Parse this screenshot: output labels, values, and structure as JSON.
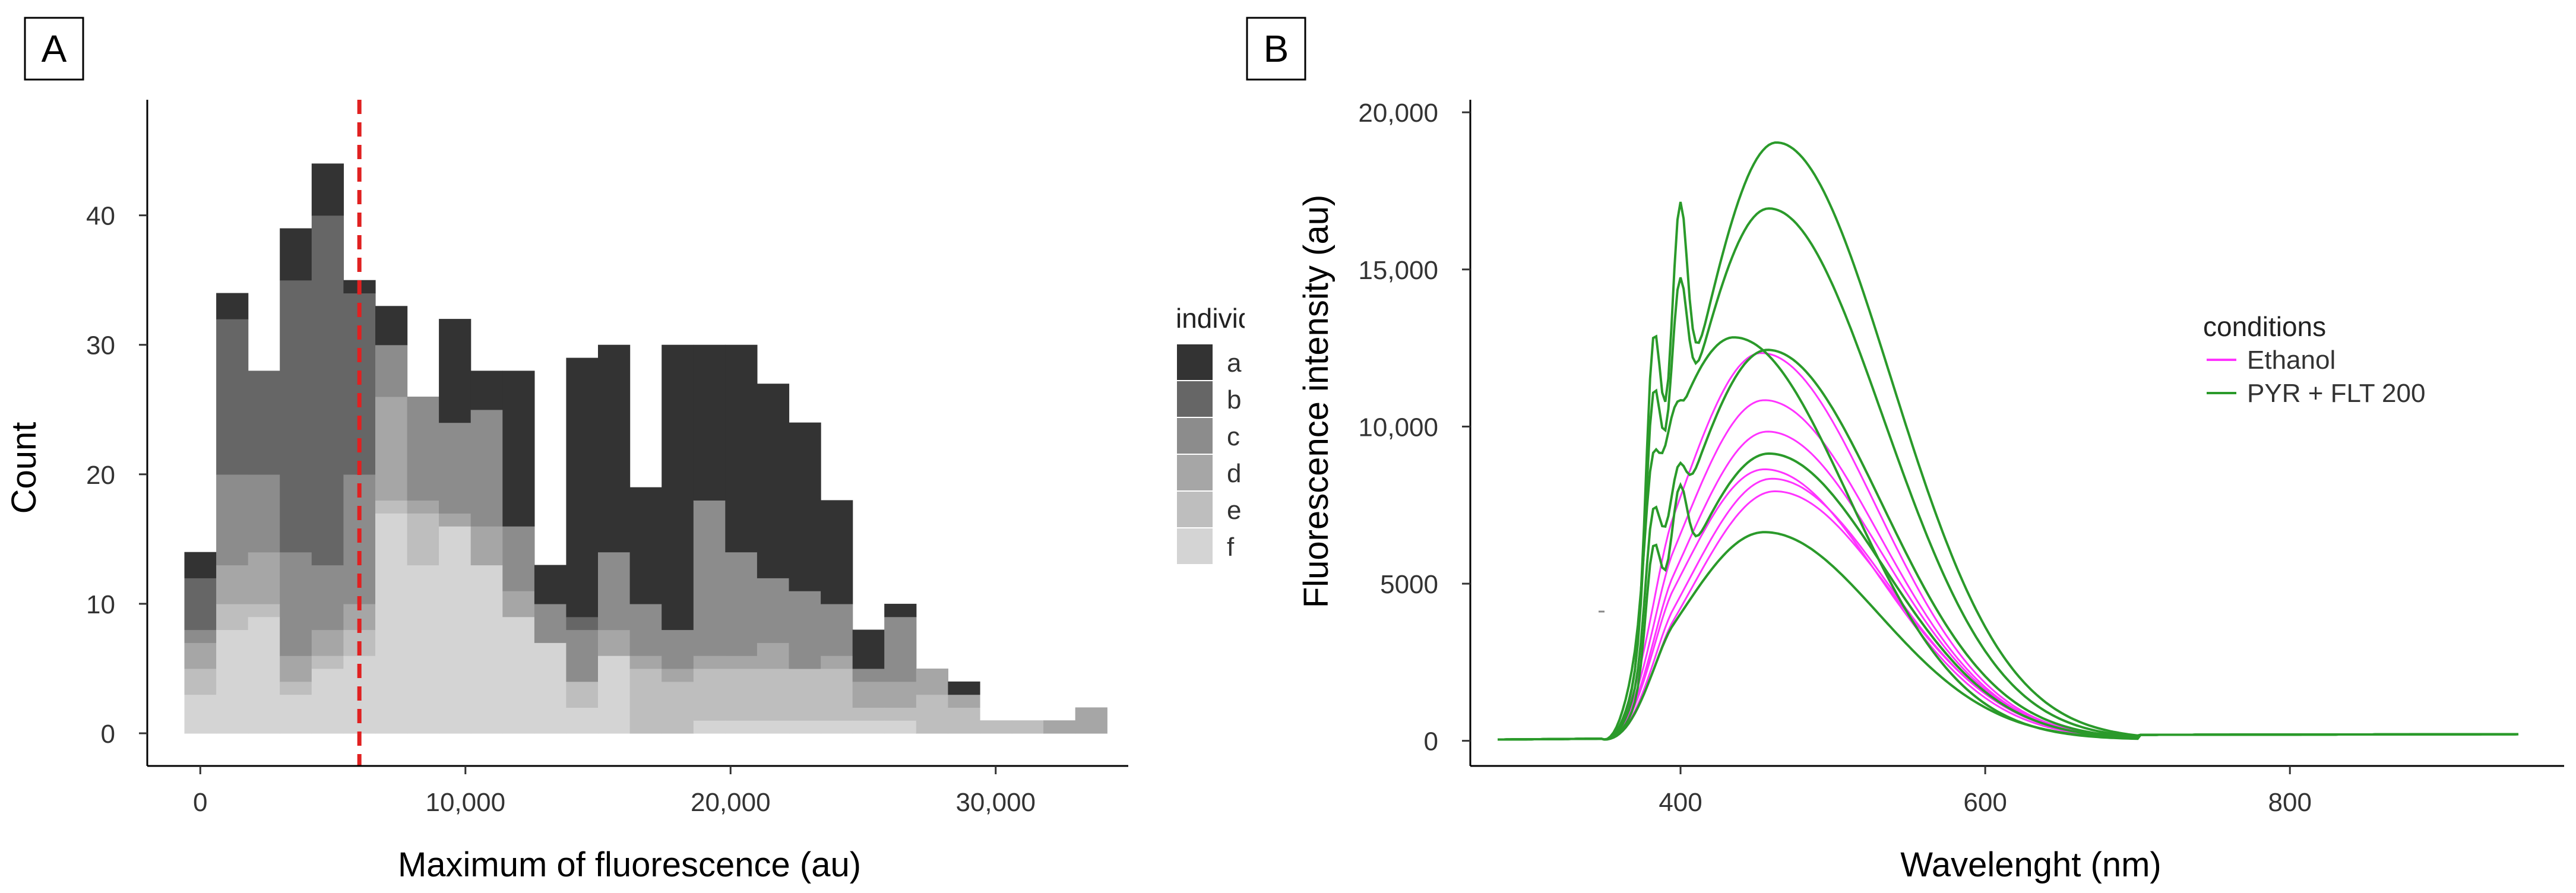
{
  "chart_data": [
    {
      "panel": "A",
      "type": "bar",
      "subtype": "stacked-histogram",
      "title": "",
      "xlabel": "Maximum of fluorescence (au)",
      "ylabel": "Count",
      "xlim": [
        -2000,
        35000
      ],
      "ylim": [
        0,
        47
      ],
      "x_ticks": [
        {
          "value": 0,
          "label": "0"
        },
        {
          "value": 10000,
          "label": "10,000"
        },
        {
          "value": 20000,
          "label": "20,000"
        },
        {
          "value": 30000,
          "label": "30,000"
        }
      ],
      "y_ticks": [
        {
          "value": 0,
          "label": "0"
        },
        {
          "value": 10,
          "label": "10"
        },
        {
          "value": 20,
          "label": "20"
        },
        {
          "value": 30,
          "label": "30"
        },
        {
          "value": 40,
          "label": "40"
        }
      ],
      "bin_starts": [
        -600,
        600,
        1800,
        3000,
        4200,
        5400,
        6600,
        7800,
        9000,
        10200,
        11400,
        12600,
        13800,
        15000,
        16200,
        17400,
        18600,
        19800,
        21000,
        22200,
        23400,
        24600,
        25800,
        27000,
        28200,
        29400,
        30600,
        31800,
        33000
      ],
      "bin_width": 1200,
      "threshold_line": {
        "value": 6000,
        "color": "#e02020",
        "style": "dashed"
      },
      "legend": {
        "title": "individual",
        "position": "right"
      },
      "series": [
        {
          "name": "f",
          "color": "#d4d4d4",
          "values": [
            3,
            8,
            9,
            3,
            5,
            6,
            17,
            13,
            16,
            13,
            9,
            7,
            2,
            6,
            0,
            0,
            1,
            1,
            1,
            1,
            1,
            1,
            1,
            0,
            0,
            0,
            0,
            0,
            0
          ]
        },
        {
          "name": "e",
          "color": "#bebebe",
          "values": [
            2,
            2,
            1,
            1,
            1,
            2,
            1,
            4,
            0,
            0,
            0,
            0,
            2,
            0,
            5,
            4,
            4,
            4,
            4,
            4,
            4,
            1,
            1,
            3,
            2,
            1,
            1,
            0,
            0
          ]
        },
        {
          "name": "d",
          "color": "#a6a6a6",
          "values": [
            2,
            3,
            4,
            2,
            2,
            2,
            8,
            1,
            1,
            3,
            2,
            0,
            0,
            2,
            1,
            1,
            1,
            1,
            2,
            0,
            1,
            2,
            2,
            2,
            1,
            0,
            0,
            1,
            2
          ]
        },
        {
          "name": "c",
          "color": "#8c8c8c",
          "values": [
            1,
            7,
            6,
            8,
            5,
            10,
            4,
            8,
            7,
            9,
            5,
            3,
            4,
            6,
            4,
            3,
            12,
            8,
            5,
            6,
            4,
            1,
            5,
            0,
            0,
            0,
            0,
            0,
            0
          ]
        },
        {
          "name": "b",
          "color": "#666666",
          "values": [
            4,
            12,
            8,
            21,
            27,
            14,
            0,
            0,
            0,
            0,
            0,
            0,
            1,
            0,
            0,
            0,
            0,
            0,
            0,
            0,
            0,
            0,
            0,
            0,
            0,
            0,
            0,
            0,
            0
          ]
        },
        {
          "name": "a",
          "color": "#333333",
          "values": [
            2,
            2,
            0,
            4,
            4,
            1,
            3,
            0,
            8,
            3,
            12,
            3,
            20,
            16,
            9,
            22,
            12,
            16,
            15,
            13,
            8,
            3,
            1,
            0,
            1,
            0,
            0,
            0,
            0
          ]
        }
      ]
    },
    {
      "panel": "B",
      "type": "line",
      "title": "",
      "xlabel": "Wavelenght (nm)",
      "ylabel": "Fluorescence intensity (au)",
      "xlim": [
        262,
        980
      ],
      "ylim": [
        -800,
        20400
      ],
      "x_ticks": [
        {
          "value": 400,
          "label": "400"
        },
        {
          "value": 600,
          "label": "600"
        },
        {
          "value": 800,
          "label": "800"
        }
      ],
      "y_ticks": [
        {
          "value": 0,
          "label": "0"
        },
        {
          "value": 5000,
          "label": "5000"
        },
        {
          "value": 10000,
          "label": "10,000"
        },
        {
          "value": 15000,
          "label": "15,000"
        },
        {
          "value": 20000,
          "label": "20,000"
        }
      ],
      "legend": {
        "title": "conditions",
        "position": "top-right"
      },
      "wavelength_range": [
        280,
        950
      ],
      "series": [
        {
          "name": "Ethanol",
          "color": "#ff33ff",
          "peak_nm": 453,
          "peak": 12300
        },
        {
          "name": "Ethanol",
          "color": "#ff33ff",
          "peak_nm": 455,
          "peak": 10800
        },
        {
          "name": "Ethanol",
          "color": "#ff33ff",
          "peak_nm": 457,
          "peak": 9800
        },
        {
          "name": "Ethanol",
          "color": "#ff33ff",
          "peak_nm": 455,
          "peak": 8600
        },
        {
          "name": "Ethanol",
          "color": "#ff33ff",
          "peak_nm": 460,
          "peak": 8300
        },
        {
          "name": "Ethanol",
          "color": "#ff33ff",
          "peak_nm": 462,
          "peak": 7900
        },
        {
          "name": "PYR + FLT 200",
          "color": "#2a9a2a",
          "peak_nm": 463,
          "peak": 19000,
          "shoulder_380": 14700,
          "shoulder_400": 17100
        },
        {
          "name": "PYR + FLT 200",
          "color": "#2a9a2a",
          "peak_nm": 458,
          "peak": 16900,
          "shoulder_380": 12500,
          "shoulder_400": 14700
        },
        {
          "name": "PYR + FLT 200",
          "color": "#2a9a2a",
          "peak_nm": 435,
          "peak": 12800,
          "shoulder_380": 9800,
          "shoulder_400": 10800
        },
        {
          "name": "PYR + FLT 200",
          "color": "#2a9a2a",
          "peak_nm": 457,
          "peak": 12400,
          "shoulder_380": 8200,
          "shoulder_400": 8800
        },
        {
          "name": "PYR + FLT 200",
          "color": "#2a9a2a",
          "peak_nm": 458,
          "peak": 9100,
          "shoulder_380": 7000,
          "shoulder_400": 8100
        },
        {
          "name": "PYR + FLT 200",
          "color": "#2a9a2a",
          "peak_nm": 455,
          "peak": 6600
        }
      ]
    }
  ],
  "panel_labels": {
    "a": "A",
    "b": "B"
  },
  "panelA": {
    "ylabel": "Count",
    "xlabel": "Maximum of fluorescence (au)",
    "legend_title": "individual",
    "legend_items": [
      "a",
      "b",
      "c",
      "d",
      "e",
      "f"
    ],
    "x_tick_labels": [
      "0",
      "10,000",
      "20,000",
      "30,000"
    ],
    "y_tick_labels": [
      "0",
      "10",
      "20",
      "30",
      "40"
    ]
  },
  "panelB": {
    "ylabel": "Fluorescence intensity (au)",
    "xlabel": "Wavelenght (nm)",
    "legend_title": "conditions",
    "legend_items": [
      "Ethanol",
      "PYR + FLT 200"
    ],
    "x_tick_labels": [
      "400",
      "600",
      "800"
    ],
    "y_tick_labels": [
      "0",
      "5000",
      "10,000",
      "15,000",
      "20,000"
    ]
  }
}
